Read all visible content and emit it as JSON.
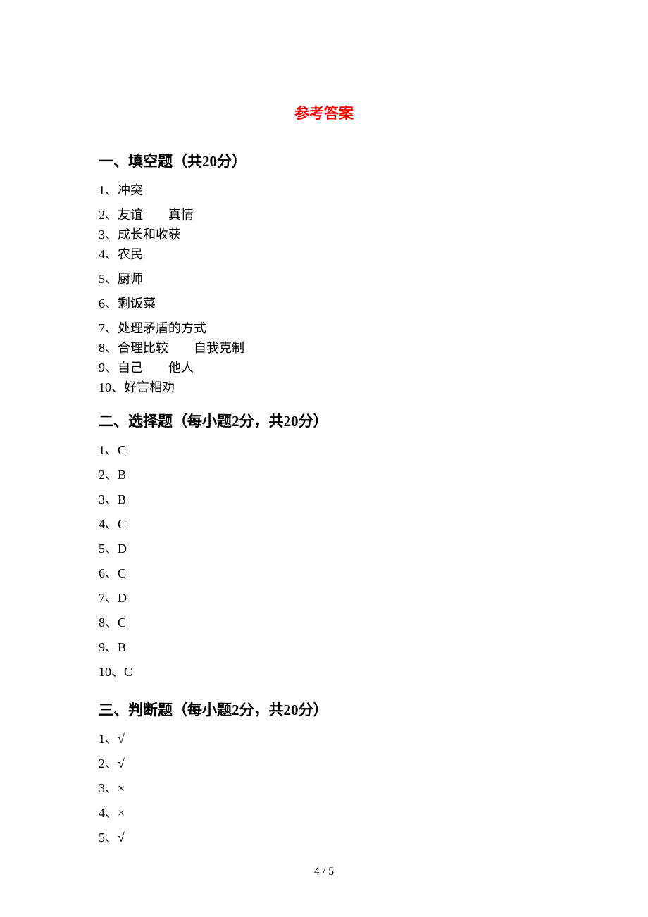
{
  "title": "参考答案",
  "sections": [
    {
      "heading": "一、填空题（共20分）",
      "items": [
        {
          "num": "1",
          "text": "冲突",
          "tight": false
        },
        {
          "num": "2",
          "text": "友谊　　真情",
          "tight": true
        },
        {
          "num": "3",
          "text": "成长和收获",
          "tight": true
        },
        {
          "num": "4",
          "text": "农民",
          "tight": false
        },
        {
          "num": "5",
          "text": "厨师",
          "tight": false
        },
        {
          "num": "6",
          "text": "剩饭菜",
          "tight": false
        },
        {
          "num": "7",
          "text": "处理矛盾的方式",
          "tight": true
        },
        {
          "num": "8",
          "text": "合理比较　　自我克制",
          "tight": true
        },
        {
          "num": "9",
          "text": "自己　　他人",
          "tight": true
        },
        {
          "num": "10",
          "text": "好言相劝",
          "tight": true
        }
      ]
    },
    {
      "heading": "二、选择题（每小题2分，共20分）",
      "items": [
        {
          "num": "1",
          "text": "C",
          "tight": false
        },
        {
          "num": "2",
          "text": "B",
          "tight": false
        },
        {
          "num": "3",
          "text": "B",
          "tight": false
        },
        {
          "num": "4",
          "text": "C",
          "tight": false
        },
        {
          "num": "5",
          "text": "D",
          "tight": false
        },
        {
          "num": "6",
          "text": "C",
          "tight": false
        },
        {
          "num": "7",
          "text": "D",
          "tight": false
        },
        {
          "num": "8",
          "text": "C",
          "tight": false
        },
        {
          "num": "9",
          "text": "B",
          "tight": false
        },
        {
          "num": "10",
          "text": "C",
          "tight": false
        }
      ]
    },
    {
      "heading": "三、判断题（每小题2分，共20分）",
      "items": [
        {
          "num": "1",
          "text": "√",
          "tight": false
        },
        {
          "num": "2",
          "text": "√",
          "tight": false
        },
        {
          "num": "3",
          "text": "×",
          "tight": false
        },
        {
          "num": "4",
          "text": "×",
          "tight": false
        },
        {
          "num": "5",
          "text": "√",
          "tight": false
        }
      ]
    }
  ],
  "page_number": "4 / 5"
}
